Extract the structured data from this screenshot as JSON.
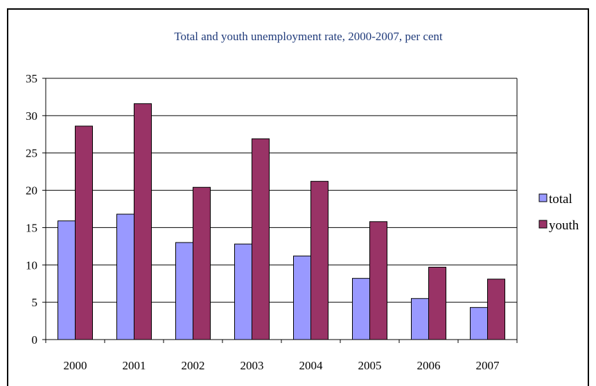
{
  "colors": {
    "total": "#9999ff",
    "youth": "#993366",
    "title": "#1f3a7a",
    "grid": "#000000"
  },
  "chart_data": {
    "type": "bar",
    "title": "Total and youth unemployment rate, 2000-2007, per cent",
    "categories": [
      "2000",
      "2001",
      "2002",
      "2003",
      "2004",
      "2005",
      "2006",
      "2007"
    ],
    "series": [
      {
        "name": "total",
        "values": [
          15.9,
          16.8,
          13.0,
          12.8,
          11.2,
          8.2,
          5.5,
          4.3
        ]
      },
      {
        "name": "youth",
        "values": [
          28.6,
          31.6,
          20.4,
          26.9,
          21.2,
          15.8,
          9.7,
          8.1
        ]
      }
    ],
    "yticks": [
      "0",
      "5",
      "10",
      "15",
      "20",
      "25",
      "30",
      "35"
    ],
    "ylim": [
      0,
      35
    ],
    "grid": true,
    "legend_position": "right"
  }
}
